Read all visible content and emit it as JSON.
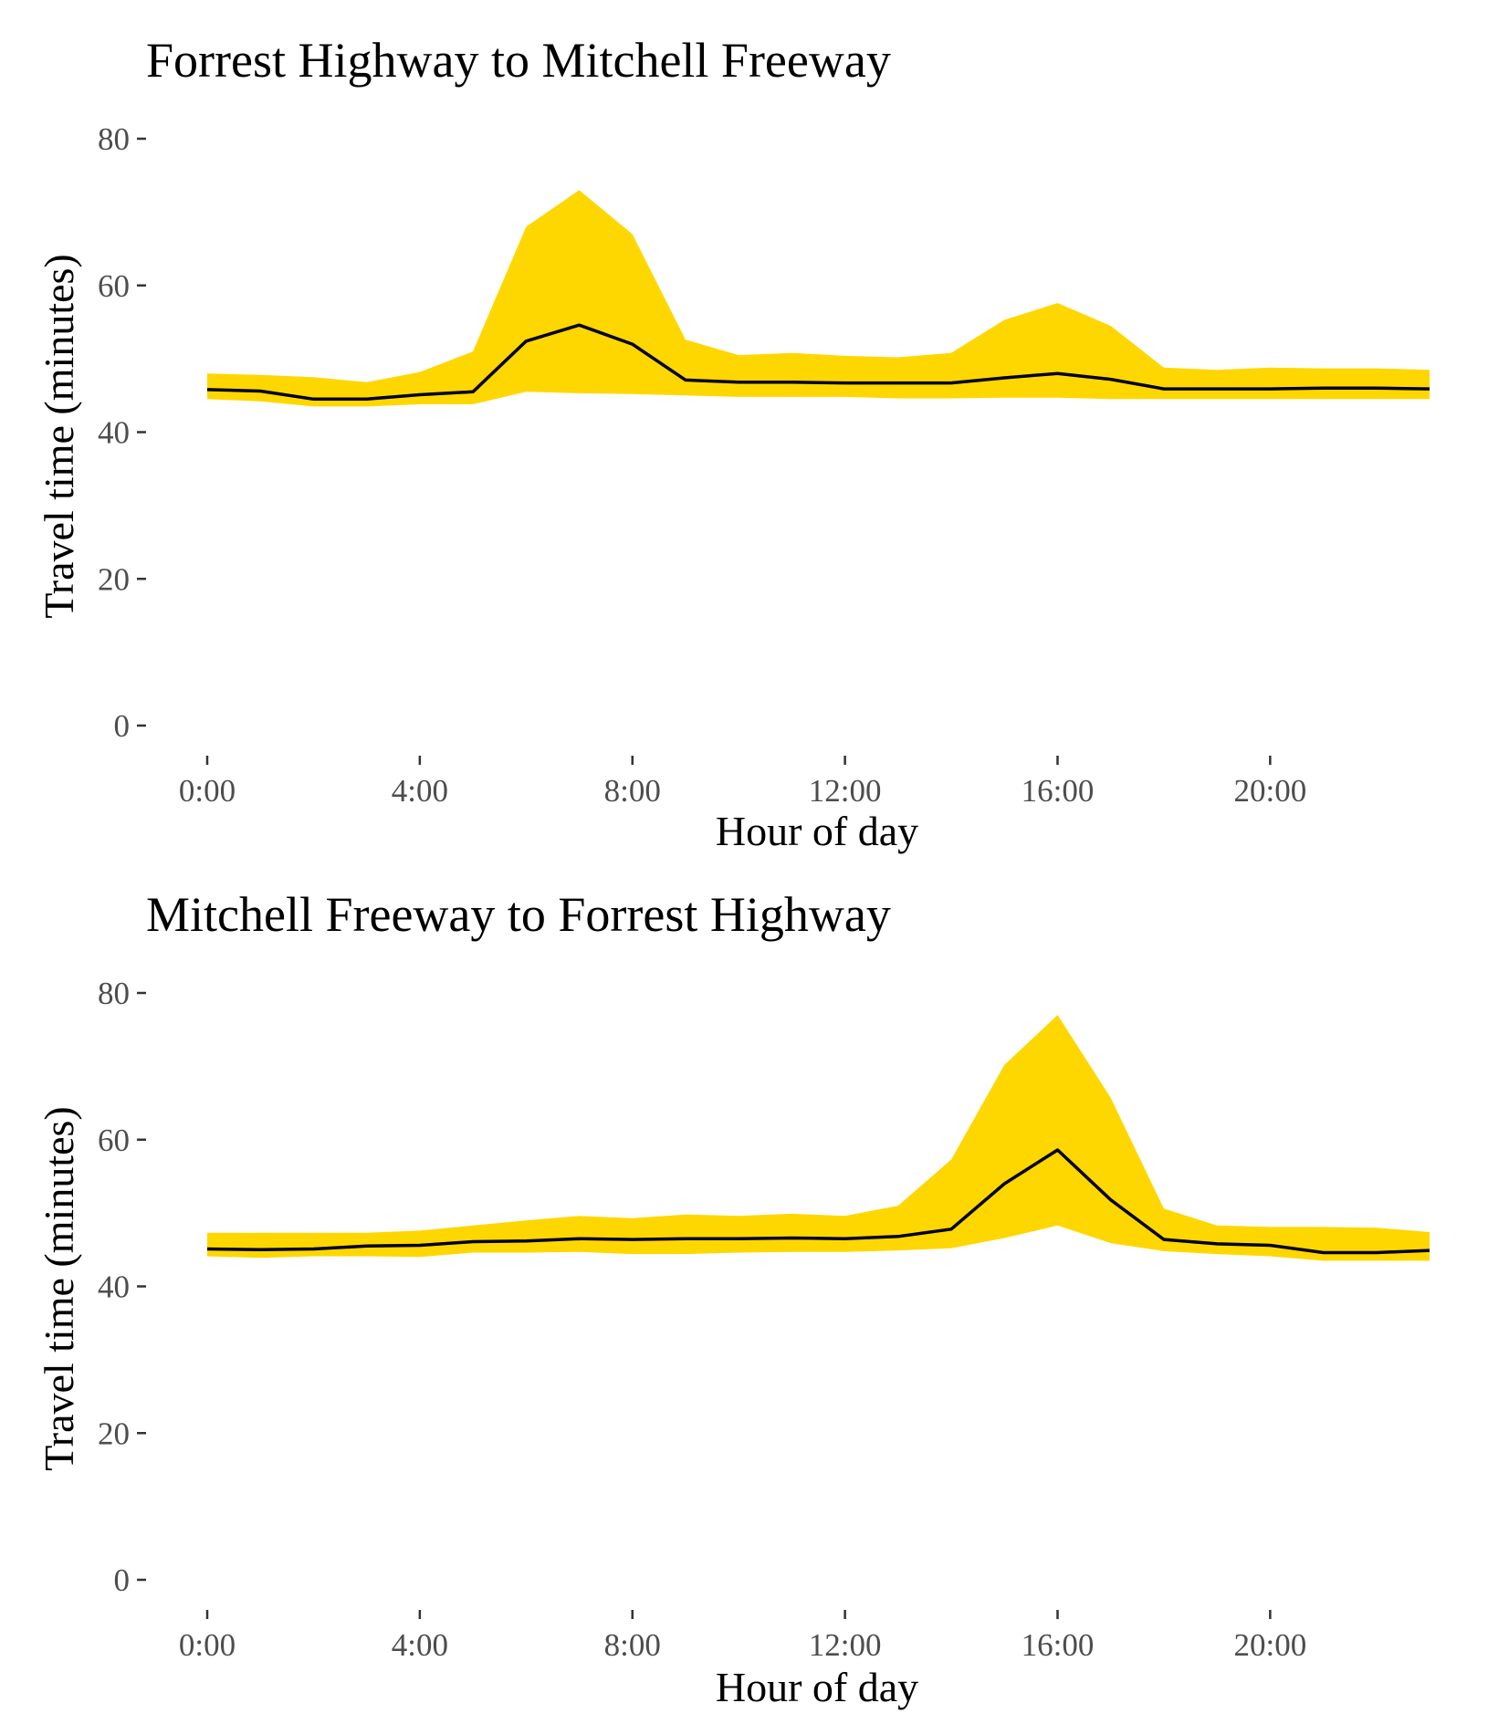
{
  "colors": {
    "band": "#FFD700",
    "line": "#000000",
    "tick_label": "#4d4d4d"
  },
  "chart_data": [
    {
      "type": "area",
      "title": "Forrest Highway to Mitchell Freeway",
      "xlabel": "Hour of day",
      "ylabel": "Travel time (minutes)",
      "ylim": [
        0,
        80
      ],
      "xlim": [
        0,
        23
      ],
      "grid": false,
      "x_ticks": [
        0,
        4,
        8,
        12,
        16,
        20
      ],
      "x_tick_labels": [
        "0:00",
        "4:00",
        "8:00",
        "12:00",
        "16:00",
        "20:00"
      ],
      "y_ticks": [
        0,
        20,
        40,
        60,
        80
      ],
      "y_tick_labels": [
        "0",
        "20",
        "40",
        "60",
        "80"
      ],
      "x": [
        0,
        1,
        2,
        3,
        4,
        5,
        6,
        7,
        8,
        9,
        10,
        11,
        12,
        13,
        14,
        15,
        16,
        17,
        18,
        19,
        20,
        21,
        22,
        23
      ],
      "series": [
        {
          "role": "band_upper",
          "values": [
            48,
            47.8,
            47.5,
            46.8,
            48.2,
            51,
            68,
            73,
            67,
            52.6,
            50.5,
            50.8,
            50.4,
            50.2,
            50.8,
            55.3,
            57.6,
            54.5,
            48.8,
            48.5,
            48.8,
            48.7,
            48.7,
            48.5
          ]
        },
        {
          "role": "band_lower",
          "values": [
            44.5,
            44.2,
            43.5,
            43.5,
            43.8,
            43.8,
            45.5,
            45.3,
            45.2,
            45.0,
            44.8,
            44.8,
            44.8,
            44.6,
            44.6,
            44.7,
            44.7,
            44.5,
            44.5,
            44.5,
            44.5,
            44.5,
            44.5,
            44.5
          ]
        },
        {
          "role": "median",
          "values": [
            45.8,
            45.6,
            44.5,
            44.5,
            45.1,
            45.5,
            52.4,
            54.6,
            52.0,
            47.1,
            46.8,
            46.8,
            46.7,
            46.7,
            46.7,
            47.4,
            48.0,
            47.2,
            45.9,
            45.9,
            45.9,
            46.0,
            46.0,
            45.9
          ]
        }
      ]
    },
    {
      "type": "area",
      "title": "Mitchell Freeway to Forrest Highway",
      "xlabel": "Hour of day",
      "ylabel": "Travel time (minutes)",
      "ylim": [
        0,
        80
      ],
      "xlim": [
        0,
        23
      ],
      "grid": false,
      "x_ticks": [
        0,
        4,
        8,
        12,
        16,
        20
      ],
      "x_tick_labels": [
        "0:00",
        "4:00",
        "8:00",
        "12:00",
        "16:00",
        "20:00"
      ],
      "y_ticks": [
        0,
        20,
        40,
        60,
        80
      ],
      "y_tick_labels": [
        "0",
        "20",
        "40",
        "60",
        "80"
      ],
      "x": [
        0,
        1,
        2,
        3,
        4,
        5,
        6,
        7,
        8,
        9,
        10,
        11,
        12,
        13,
        14,
        15,
        16,
        17,
        18,
        19,
        20,
        21,
        22,
        23
      ],
      "series": [
        {
          "role": "band_upper",
          "values": [
            47.3,
            47.3,
            47.3,
            47.3,
            47.6,
            48.3,
            49.0,
            49.6,
            49.3,
            49.8,
            49.6,
            49.9,
            49.6,
            51.0,
            57.3,
            70.2,
            77.0,
            65.7,
            50.6,
            48.3,
            48.1,
            48.1,
            48.0,
            47.4
          ]
        },
        {
          "role": "band_lower",
          "values": [
            44.1,
            43.9,
            44.1,
            44.1,
            44.0,
            44.6,
            44.6,
            44.7,
            44.4,
            44.4,
            44.6,
            44.7,
            44.7,
            44.9,
            45.2,
            46.6,
            48.3,
            45.9,
            44.8,
            44.4,
            44.1,
            43.5,
            43.5,
            43.5
          ]
        },
        {
          "role": "median",
          "values": [
            45.1,
            45.0,
            45.1,
            45.5,
            45.6,
            46.1,
            46.2,
            46.5,
            46.4,
            46.5,
            46.5,
            46.6,
            46.5,
            46.8,
            47.8,
            54.0,
            58.6,
            51.8,
            46.4,
            45.8,
            45.6,
            44.6,
            44.6,
            44.9
          ]
        }
      ]
    }
  ]
}
